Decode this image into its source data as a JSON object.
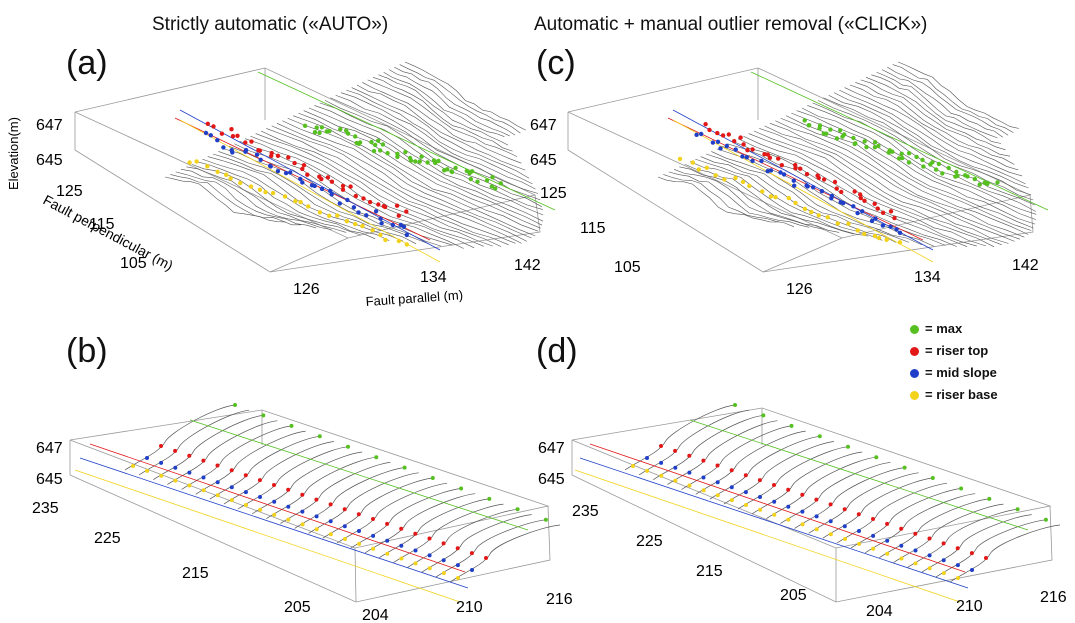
{
  "titles": {
    "left": "Strictly automatic («AUTO»)",
    "right": "Automatic + manual outlier removal («CLICK»)"
  },
  "panels": {
    "a": {
      "label": "(a)",
      "z_ticks": [
        "647",
        "645"
      ],
      "y_ticks": [
        "125",
        "115",
        "105"
      ],
      "x_ticks": [
        "126",
        "134",
        "142"
      ],
      "z_axis_label": "Elevation(m)",
      "y_axis_label": "Fault perpendicular (m)",
      "x_axis_label": "Fault parallel (m)"
    },
    "b": {
      "label": "(b)",
      "z_ticks": [
        "647",
        "645"
      ],
      "y_ticks": [
        "235",
        "225",
        "215",
        "205"
      ],
      "x_ticks": [
        "204",
        "210",
        "216"
      ]
    },
    "c": {
      "label": "(c)",
      "z_ticks": [
        "647",
        "645"
      ],
      "y_ticks": [
        "125",
        "115",
        "105"
      ],
      "x_ticks": [
        "126",
        "134",
        "142"
      ]
    },
    "d": {
      "label": "(d)",
      "z_ticks": [
        "647",
        "645"
      ],
      "y_ticks": [
        "235",
        "225",
        "215",
        "205"
      ],
      "x_ticks": [
        "204",
        "210",
        "216"
      ]
    }
  },
  "legend": {
    "items": [
      {
        "label": "= max",
        "color": "#55c020"
      },
      {
        "label": "= riser top",
        "color": "#e21818"
      },
      {
        "label": "= mid slope",
        "color": "#1f3fc8"
      },
      {
        "label": "= riser base",
        "color": "#f2d21a"
      }
    ]
  },
  "colors": {
    "max": "#55c020",
    "riser_top": "#e21818",
    "mid_slope": "#1f3fc8",
    "riser_base": "#f2d21a",
    "profile": "#555555",
    "box": "#999999"
  }
}
